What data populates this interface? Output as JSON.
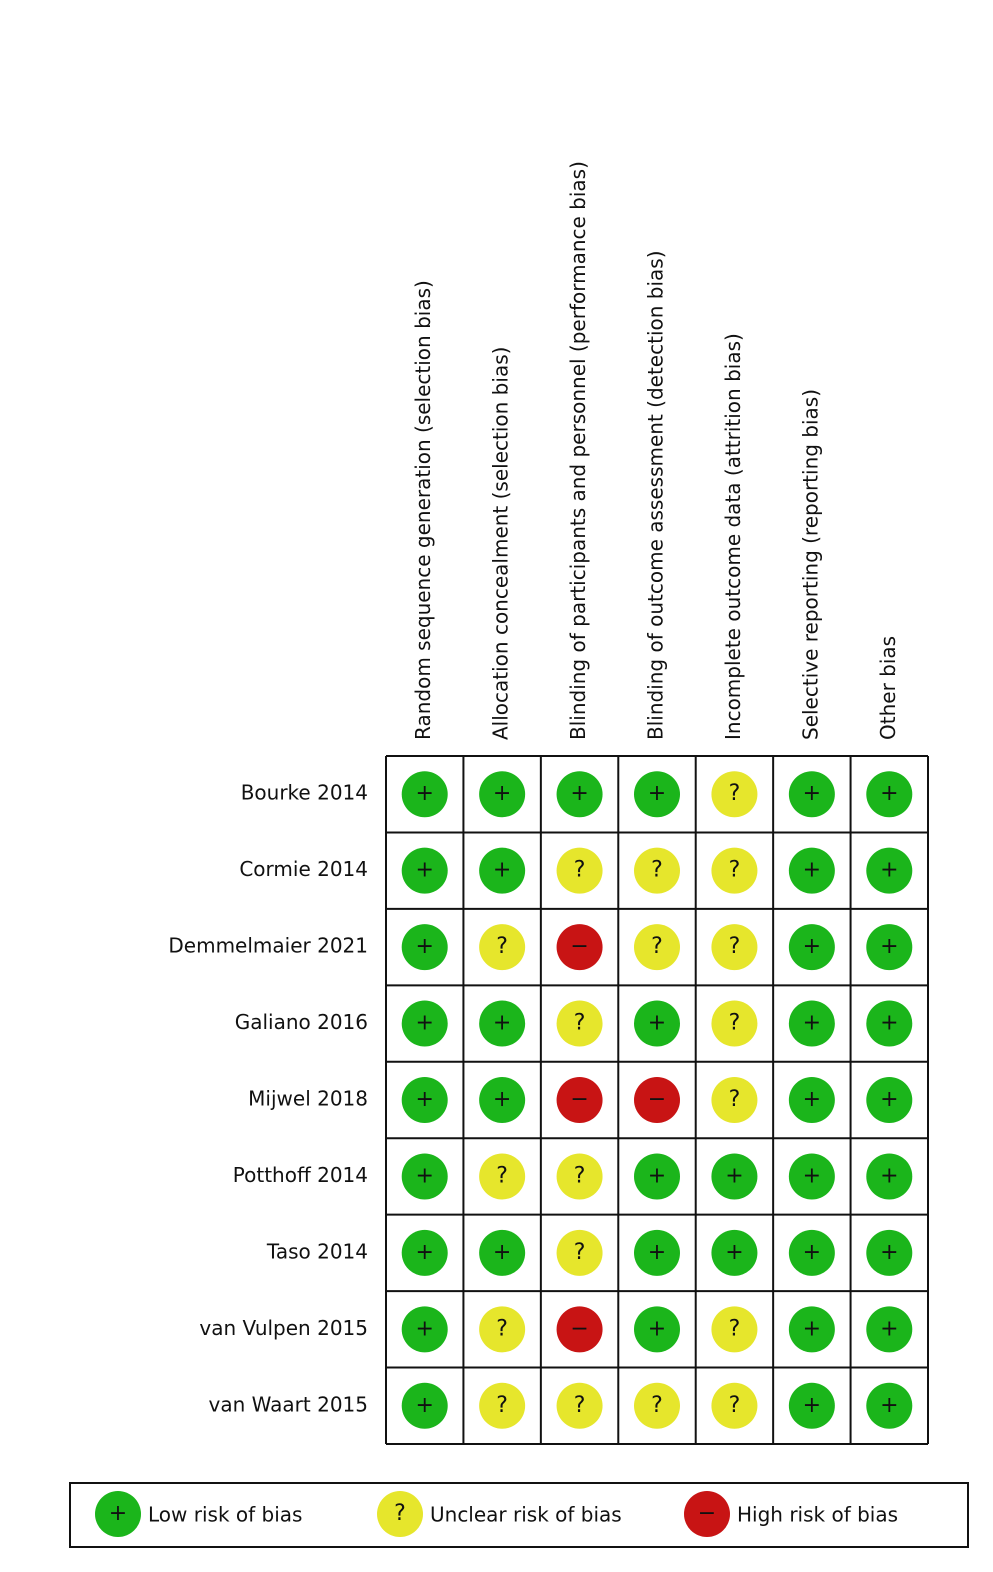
{
  "domains": [
    "Random sequence generation (selection bias)",
    "Allocation concealment (selection bias)",
    "Blinding of participants and personnel (performance bias)",
    "Blinding of outcome assessment (detection bias)",
    "Incomplete outcome data (attrition bias)",
    "Selective reporting (reporting bias)",
    "Other bias"
  ],
  "studies": [
    {
      "name": "Bourke 2014",
      "cells": [
        "+",
        "+",
        "+",
        "+",
        "?",
        "+",
        "+"
      ]
    },
    {
      "name": "Cormie 2014",
      "cells": [
        "+",
        "+",
        "?",
        "?",
        "?",
        "+",
        "+"
      ]
    },
    {
      "name": "Demmelmaier 2021",
      "cells": [
        "+",
        "?",
        "−",
        "?",
        "?",
        "+",
        "+"
      ]
    },
    {
      "name": "Galiano 2016",
      "cells": [
        "+",
        "+",
        "?",
        "+",
        "?",
        "+",
        "+"
      ]
    },
    {
      "name": "Mijwel 2018",
      "cells": [
        "+",
        "+",
        "−",
        "−",
        "?",
        "+",
        "+"
      ]
    },
    {
      "name": "Potthoff 2014",
      "cells": [
        "+",
        "?",
        "?",
        "+",
        "+",
        "+",
        "+"
      ]
    },
    {
      "name": "Taso 2014",
      "cells": [
        "+",
        "+",
        "?",
        "+",
        "+",
        "+",
        "+"
      ]
    },
    {
      "name": "van Vulpen 2015",
      "cells": [
        "+",
        "?",
        "−",
        "+",
        "?",
        "+",
        "+"
      ]
    },
    {
      "name": "van Waart 2015",
      "cells": [
        "+",
        "?",
        "?",
        "?",
        "?",
        "+",
        "+"
      ]
    }
  ],
  "legend": [
    {
      "symbol": "+",
      "label": "Low risk of bias",
      "color": "#1bb51b"
    },
    {
      "symbol": "?",
      "label": "Unclear risk of bias",
      "color": "#e6e62c"
    },
    {
      "symbol": "−",
      "label": "High risk of bias",
      "color": "#c81414"
    }
  ]
}
